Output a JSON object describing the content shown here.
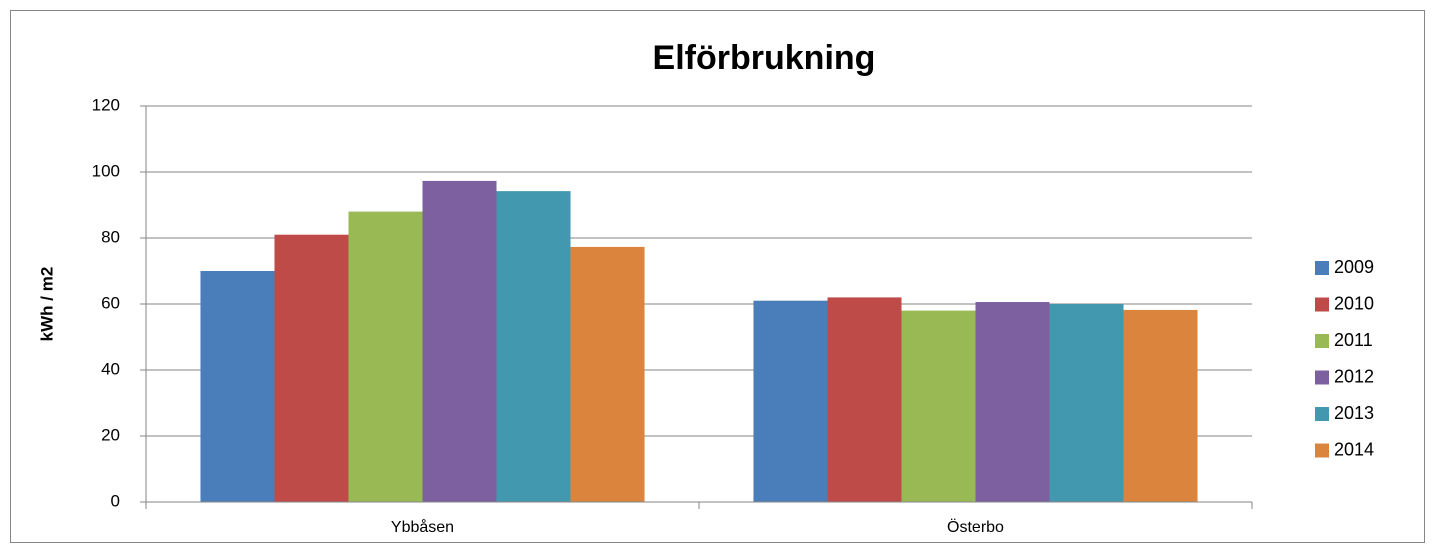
{
  "chart_data": {
    "type": "bar",
    "title": "Elförbrukning",
    "y_label": "kWh / m2",
    "categories": [
      "Ybbåsen",
      "Österbo"
    ],
    "series": [
      {
        "name": "2009",
        "color": "#4a7ebb",
        "values": [
          70,
          61
        ]
      },
      {
        "name": "2010",
        "color": "#be4b48",
        "values": [
          81,
          62
        ]
      },
      {
        "name": "2011",
        "color": "#98b954",
        "values": [
          88,
          58
        ]
      },
      {
        "name": "2012",
        "color": "#7d60a0",
        "values": [
          97.3,
          60.6
        ]
      },
      {
        "name": "2013",
        "color": "#4198af",
        "values": [
          94.2,
          60
        ]
      },
      {
        "name": "2014",
        "color": "#db843d",
        "values": [
          77.3,
          58.2
        ]
      }
    ],
    "ylim": [
      0,
      120
    ],
    "yticks": [
      0,
      20,
      40,
      60,
      80,
      100,
      120
    ],
    "grid": true,
    "legend": "right"
  }
}
